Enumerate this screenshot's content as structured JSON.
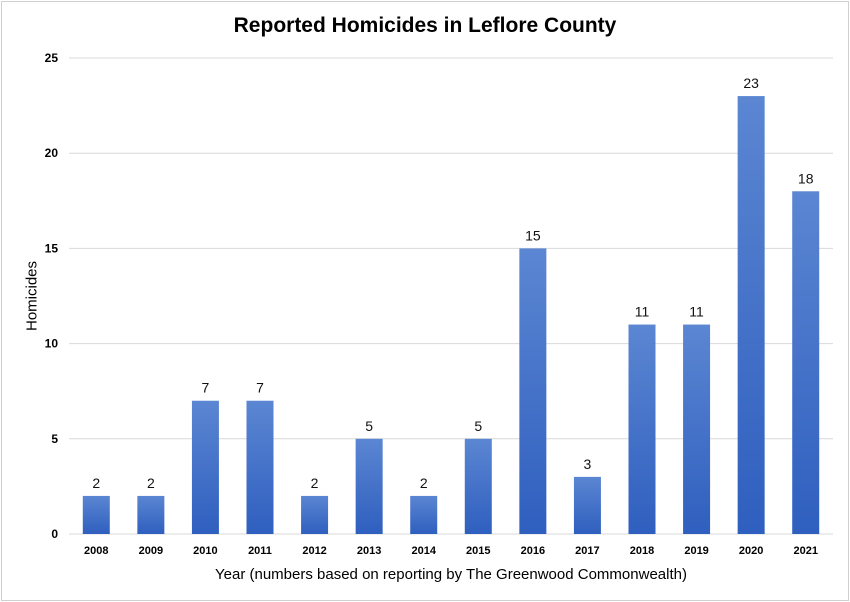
{
  "chart_data": {
    "type": "bar",
    "title": "Reported Homicides in Leflore County",
    "xlabel": "Year (numbers based on reporting by The Greenwood Commonwealth)",
    "ylabel": "Homicides",
    "categories": [
      "2008",
      "2009",
      "2010",
      "2011",
      "2012",
      "2013",
      "2014",
      "2015",
      "2016",
      "2017",
      "2018",
      "2019",
      "2020",
      "2021"
    ],
    "values": [
      2,
      2,
      7,
      7,
      2,
      5,
      2,
      5,
      15,
      3,
      11,
      11,
      23,
      18
    ],
    "ylim": [
      0,
      25
    ],
    "yticks": [
      0,
      5,
      10,
      15,
      20,
      25
    ],
    "grid": true,
    "bar_color_top": "#5b86d2",
    "bar_color_bottom": "#2f5fbf"
  }
}
